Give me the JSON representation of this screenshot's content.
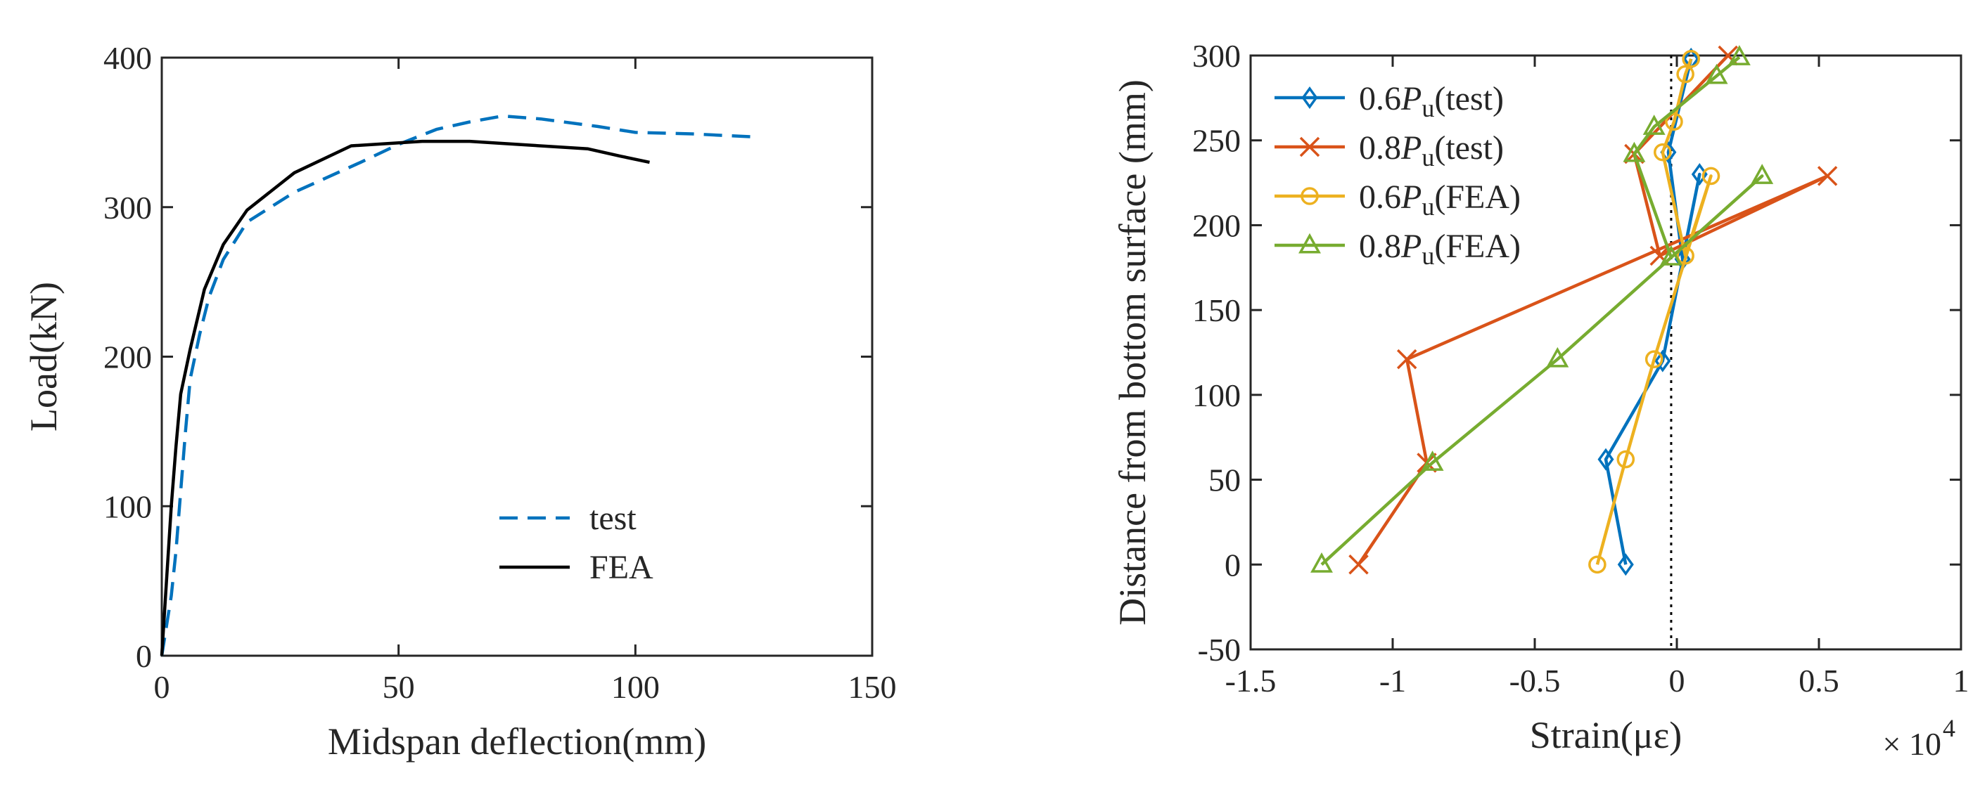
{
  "chart_data": [
    {
      "type": "line",
      "title": "",
      "xlabel": "Midspan deflection(mm)",
      "ylabel": "Load(kN)",
      "xlim": [
        0,
        150
      ],
      "ylim": [
        0,
        400
      ],
      "xticks": [
        0,
        50,
        100,
        150
      ],
      "yticks": [
        0,
        100,
        200,
        300,
        400
      ],
      "grid": false,
      "legend_position": "bottom-right",
      "series": [
        {
          "name": "test",
          "color": "#0072BD",
          "dash": "dashed",
          "x": [
            0,
            2,
            3,
            4,
            5,
            6,
            8,
            10,
            13,
            18,
            28,
            42,
            50,
            58,
            65,
            72,
            80,
            92,
            100,
            112,
            125
          ],
          "y": [
            0,
            40,
            70,
            110,
            150,
            185,
            215,
            240,
            265,
            290,
            310,
            330,
            342,
            352,
            357,
            361,
            359,
            354,
            350,
            349,
            347
          ]
        },
        {
          "name": "FEA",
          "color": "#000000",
          "dash": "solid",
          "x": [
            0,
            1,
            2,
            3,
            4,
            6,
            9,
            13,
            18,
            28,
            40,
            55,
            65,
            75,
            90,
            97,
            103
          ],
          "y": [
            0,
            50,
            100,
            140,
            175,
            205,
            245,
            275,
            298,
            323,
            341,
            344,
            344,
            342,
            339,
            334,
            330
          ]
        }
      ]
    },
    {
      "type": "line",
      "title": "",
      "xlabel": "Strain(με)",
      "ylabel": "Distance from bottom surface (mm)",
      "x_exponent_label": "× 10",
      "x_exponent": "4",
      "xlim": [
        -1.5,
        1
      ],
      "ylim": [
        -50,
        300
      ],
      "xticks": [
        -1.5,
        -1,
        -0.5,
        0,
        0.5,
        1
      ],
      "xtick_labels": [
        "-1.5",
        "-1",
        "-0.5",
        "0",
        "0.5",
        "1"
      ],
      "yticks": [
        -50,
        0,
        50,
        100,
        150,
        200,
        250,
        300
      ],
      "grid": false,
      "legend_position": "top-left",
      "reference_line": {
        "x": -0.02,
        "style": "dotted",
        "color": "#000000"
      },
      "series": [
        {
          "name": "0.6",
          "symbol": "P",
          "subscript": "u",
          "suffix": "(test)",
          "color": "#0072BD",
          "marker": "diamond",
          "x": [
            -0.18,
            -0.25,
            -0.05,
            0.08,
            0.02,
            -0.03,
            0.05
          ],
          "y": [
            0,
            62,
            120,
            230,
            180,
            243,
            298
          ]
        },
        {
          "name": "0.8",
          "symbol": "P",
          "subscript": "u",
          "suffix": "(test)",
          "color": "#D95319",
          "marker": "x",
          "x": [
            -1.12,
            -0.88,
            -0.95,
            0.53,
            -0.06,
            -0.15,
            0.18
          ],
          "y": [
            0,
            60,
            121,
            229,
            182,
            242,
            300
          ]
        },
        {
          "name": "0.6",
          "symbol": "P",
          "subscript": "u",
          "suffix": "(FEA)",
          "color": "#EDB120",
          "marker": "circle",
          "x": [
            -0.28,
            -0.18,
            -0.08,
            0.12,
            0.03,
            -0.05,
            -0.01,
            0.03,
            0.05
          ],
          "y": [
            0,
            62,
            121,
            229,
            182,
            243,
            261,
            289,
            298
          ]
        },
        {
          "name": "0.8",
          "symbol": "P",
          "subscript": "u",
          "suffix": "(FEA)",
          "color": "#77AC30",
          "marker": "triangle",
          "x": [
            -1.25,
            -0.86,
            -0.42,
            0.3,
            -0.02,
            -0.15,
            -0.08,
            0.14,
            0.22
          ],
          "y": [
            0,
            60,
            121,
            229,
            181,
            242,
            258,
            288,
            299
          ]
        }
      ]
    }
  ]
}
